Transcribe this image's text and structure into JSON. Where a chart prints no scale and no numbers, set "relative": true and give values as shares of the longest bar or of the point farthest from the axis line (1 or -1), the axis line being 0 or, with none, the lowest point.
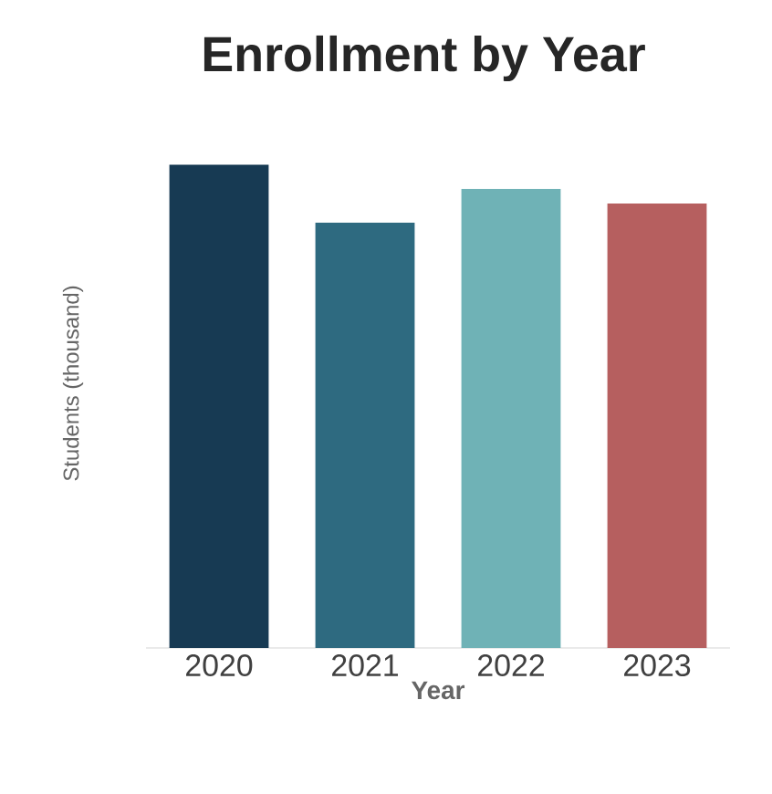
{
  "chart_data": {
    "type": "bar",
    "title": "Enrollment by Year",
    "xlabel": "Year",
    "ylabel": "Students (thousand)",
    "relative": true,
    "categories": [
      "2020",
      "2021",
      "2022",
      "2023"
    ],
    "values": [
      1,
      0.88,
      0.95,
      0.92
    ],
    "colors": [
      "#173a53",
      "#2e6a80",
      "#6fb2b6",
      "#b65f5f"
    ]
  }
}
